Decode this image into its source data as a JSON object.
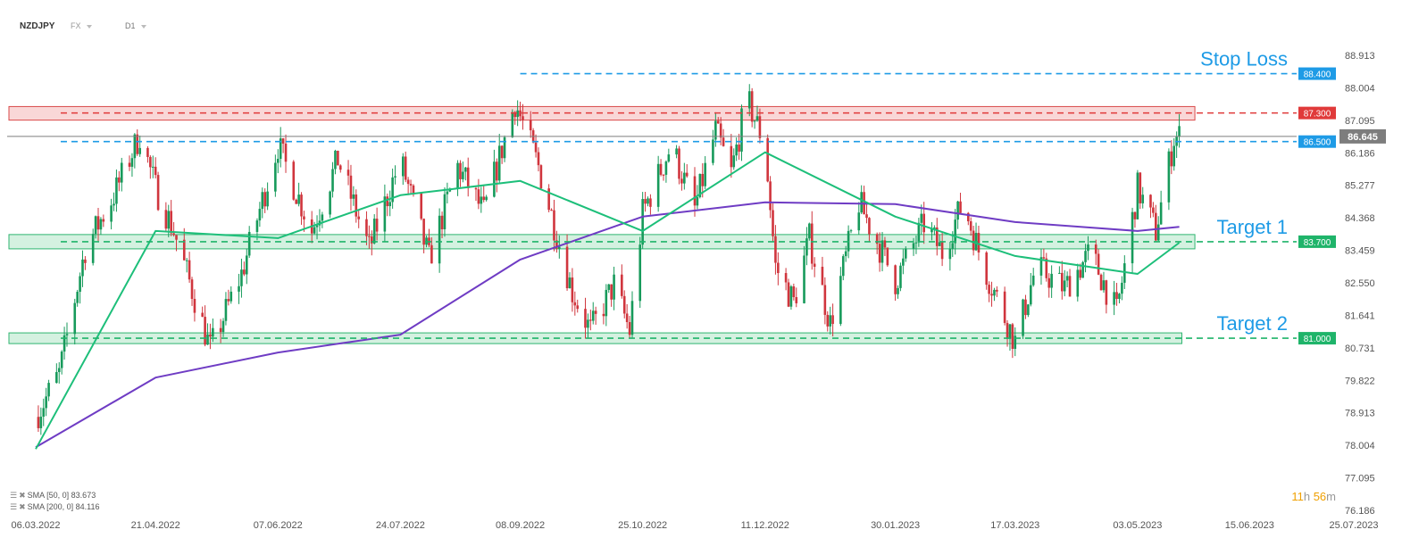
{
  "header": {
    "symbol": "NZDJPY",
    "type": "FX",
    "timeframe": "D1"
  },
  "legend": {
    "sma50": {
      "label": "SMA [50, 0]",
      "value": "83.673",
      "color": "#1dbf7a"
    },
    "sma200": {
      "label": "SMA [200, 0]",
      "value": "84.116",
      "color": "#6f3cc4"
    }
  },
  "timer": {
    "hours": "11",
    "h_unit": "h",
    "minutes": "56",
    "m_unit": "m"
  },
  "colors": {
    "up": "#179a5b",
    "down": "#d0353d",
    "stop": "#e03a3a",
    "level": "#1e9be6",
    "target": "#1fb46a",
    "current": "#7d7d7d"
  },
  "chart_data": {
    "type": "candlestick",
    "ylim": [
      76.186,
      88.913
    ],
    "y_ticks": [
      "88.913",
      "88.004",
      "87.095",
      "86.186",
      "85.277",
      "84.368",
      "83.459",
      "82.550",
      "81.641",
      "80.731",
      "79.822",
      "78.913",
      "78.004",
      "77.095",
      "76.186"
    ],
    "x_ticks": [
      "06.03.2022",
      "21.04.2022",
      "07.06.2022",
      "24.07.2022",
      "08.09.2022",
      "25.10.2022",
      "11.12.2022",
      "30.01.2023",
      "17.03.2023",
      "03.05.2023",
      "15.06.2023",
      "25.07.2023"
    ],
    "x_range": [
      "06.03.2022",
      "25.07.2023"
    ],
    "current_price": {
      "value": 86.645,
      "label": "86.645"
    },
    "levels": [
      {
        "name": "Stop Loss",
        "value": 88.4,
        "label": "88.400",
        "kind": "level",
        "start": "08.09.2022"
      },
      {
        "name": "",
        "value": 87.3,
        "label": "87.300",
        "kind": "stop",
        "start": "06.03.2022"
      },
      {
        "name": "",
        "value": 86.5,
        "label": "86.500",
        "kind": "level",
        "start": "06.03.2022"
      },
      {
        "name": "Target 1",
        "value": 83.7,
        "label": "83.700",
        "kind": "target",
        "start": "06.03.2022"
      },
      {
        "name": "Target 2",
        "value": 81.0,
        "label": "81.000",
        "kind": "target",
        "start": "06.03.2022"
      }
    ],
    "zones": [
      {
        "kind": "stop",
        "from": 87.1,
        "to": 87.48,
        "start": "06.03.2022",
        "end": "25.05.2023"
      },
      {
        "kind": "target",
        "from": 83.5,
        "to": 83.9,
        "start": "06.03.2022",
        "end": "25.05.2023"
      },
      {
        "kind": "target",
        "from": 80.85,
        "to": 81.15,
        "start": "06.03.2022",
        "end": "20.05.2023"
      }
    ],
    "anchors": [
      [
        "06.03.2022",
        78.8
      ],
      [
        "15.03.2022",
        80.0
      ],
      [
        "25.03.2022",
        83.5
      ],
      [
        "05.04.2022",
        85.0
      ],
      [
        "15.04.2022",
        86.7
      ],
      [
        "21.04.2022",
        85.2
      ],
      [
        "28.04.2022",
        84.0
      ],
      [
        "12.05.2022",
        80.7
      ],
      [
        "24.05.2022",
        82.8
      ],
      [
        "07.06.2022",
        86.4
      ],
      [
        "20.06.2022",
        84.0
      ],
      [
        "30.06.2022",
        86.0
      ],
      [
        "12.07.2022",
        83.5
      ],
      [
        "24.07.2022",
        86.0
      ],
      [
        "04.08.2022",
        83.2
      ],
      [
        "15.08.2022",
        85.8
      ],
      [
        "25.08.2022",
        84.5
      ],
      [
        "06.09.2022",
        87.6
      ],
      [
        "15.09.2022",
        85.8
      ],
      [
        "28.09.2022",
        82.3
      ],
      [
        "05.10.2022",
        81.2
      ],
      [
        "14.10.2022",
        82.5
      ],
      [
        "20.10.2022",
        81.2
      ],
      [
        "25.10.2022",
        84.5
      ],
      [
        "05.11.2022",
        86.4
      ],
      [
        "14.11.2022",
        84.6
      ],
      [
        "22.11.2022",
        86.8
      ],
      [
        "28.11.2022",
        85.6
      ],
      [
        "04.12.2022",
        87.7
      ],
      [
        "11.12.2022",
        86.4
      ],
      [
        "15.12.2022",
        83.0
      ],
      [
        "22.12.2022",
        82.0
      ],
      [
        "28.12.2022",
        83.8
      ],
      [
        "05.01.2023",
        81.4
      ],
      [
        "16.01.2023",
        84.8
      ],
      [
        "30.01.2023",
        82.6
      ],
      [
        "10.02.2023",
        84.2
      ],
      [
        "17.02.2023",
        83.4
      ],
      [
        "25.02.2023",
        84.8
      ],
      [
        "05.03.2023",
        83.0
      ],
      [
        "17.03.2023",
        80.9
      ],
      [
        "25.03.2023",
        83.0
      ],
      [
        "05.04.2023",
        82.4
      ],
      [
        "15.04.2023",
        83.4
      ],
      [
        "25.04.2023",
        81.7
      ],
      [
        "03.05.2023",
        85.2
      ],
      [
        "10.05.2023",
        84.0
      ],
      [
        "17.05.2023",
        86.6
      ],
      [
        "19.05.2023",
        86.645
      ]
    ],
    "sma50_points": [
      [
        "06.03.2022",
        77.9
      ],
      [
        "21.04.2022",
        84.0
      ],
      [
        "07.06.2022",
        83.8
      ],
      [
        "24.07.2022",
        85.0
      ],
      [
        "08.09.2022",
        85.4
      ],
      [
        "25.10.2022",
        84.0
      ],
      [
        "11.12.2022",
        86.2
      ],
      [
        "30.01.2023",
        84.4
      ],
      [
        "17.03.2023",
        83.3
      ],
      [
        "03.05.2023",
        82.8
      ],
      [
        "19.05.2023",
        83.673
      ]
    ],
    "sma200_points": [
      [
        "06.03.2022",
        77.95
      ],
      [
        "21.04.2022",
        79.9
      ],
      [
        "07.06.2022",
        80.6
      ],
      [
        "24.07.2022",
        81.1
      ],
      [
        "08.09.2022",
        83.2
      ],
      [
        "25.10.2022",
        84.4
      ],
      [
        "11.12.2022",
        84.8
      ],
      [
        "30.01.2023",
        84.75
      ],
      [
        "17.03.2023",
        84.25
      ],
      [
        "03.05.2023",
        84.0
      ],
      [
        "19.05.2023",
        84.116
      ]
    ]
  }
}
